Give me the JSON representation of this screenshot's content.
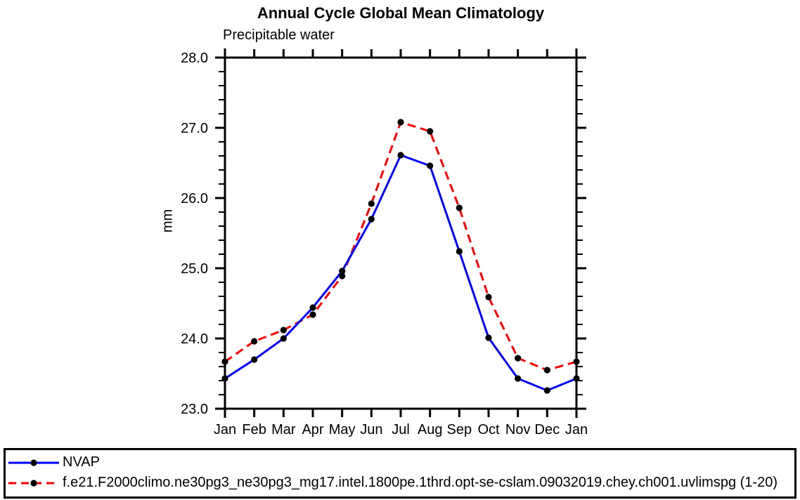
{
  "page": {
    "background": "#ffffff"
  },
  "chart_data": {
    "type": "line",
    "title": "Annual Cycle Global Mean Climatology",
    "subtitle": "Precipitable water",
    "ylabel": "mm",
    "categories": [
      "Jan",
      "Feb",
      "Mar",
      "Apr",
      "May",
      "Jun",
      "Jul",
      "Aug",
      "Sep",
      "Oct",
      "Nov",
      "Dec",
      "Jan"
    ],
    "ylim": [
      23.0,
      28.0
    ],
    "ytick_values": [
      23.0,
      24.0,
      25.0,
      26.0,
      27.0,
      28.0
    ],
    "ytick_labels": [
      "23.0",
      "24.0",
      "25.0",
      "26.0",
      "27.0",
      "28.0"
    ],
    "ytick_minor_step": 0.2,
    "grid": false,
    "axis_color": "#000000",
    "legend_position": "bottom-left-box",
    "series": [
      {
        "name": "NVAP",
        "color": "#0000ff",
        "line_style": "solid",
        "marker": "filled-circle",
        "marker_color": "#000000",
        "values": [
          23.43,
          23.7,
          24.0,
          24.44,
          24.96,
          25.7,
          26.61,
          26.46,
          25.24,
          24.01,
          23.43,
          23.26,
          23.43
        ]
      },
      {
        "name": "f.e21.F2000climo.ne30pg3_ne30pg3_mg17.intel.1800pe.1thrd.opt-se-cslam.09032019.chey.ch001.uvlimspg (1-20)",
        "color": "#ff0000",
        "line_style": "dashed",
        "marker": "filled-circle",
        "marker_color": "#000000",
        "values": [
          23.67,
          23.96,
          24.12,
          24.34,
          24.89,
          25.92,
          27.08,
          26.95,
          25.86,
          24.59,
          23.72,
          23.55,
          23.67
        ]
      }
    ]
  }
}
